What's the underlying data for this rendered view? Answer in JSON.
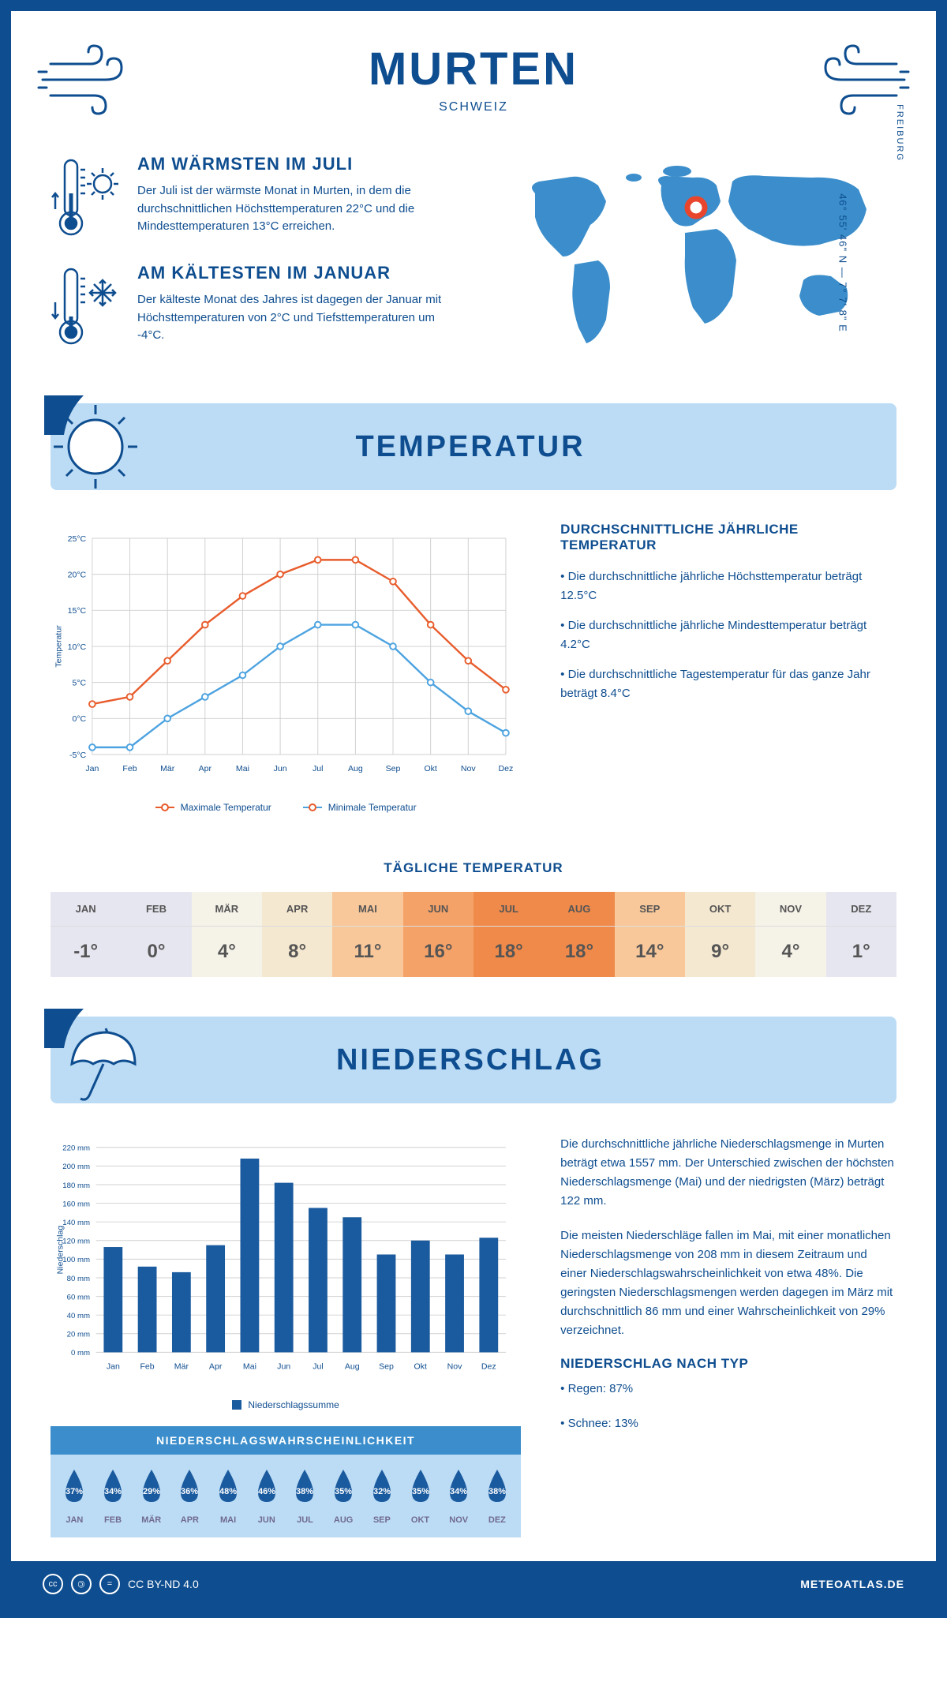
{
  "header": {
    "city": "MURTEN",
    "country": "SCHWEIZ"
  },
  "coords": "46° 55' 46\" N — 7° 7' 8\" E",
  "region": "FREIBURG",
  "intro": {
    "warm_title": "AM WÄRMSTEN IM JULI",
    "warm_text": "Der Juli ist der wärmste Monat in Murten, in dem die durchschnittlichen Höchsttemperaturen 22°C und die Mindesttemperaturen 13°C erreichen.",
    "cold_title": "AM KÄLTESTEN IM JANUAR",
    "cold_text": "Der kälteste Monat des Jahres ist dagegen der Januar mit Höchsttemperaturen von 2°C und Tiefsttemperaturen um -4°C."
  },
  "colors": {
    "primary": "#0e4d8f",
    "light_blue": "#bcdcf5",
    "mid_blue": "#3b8ecb",
    "max_line": "#e85c2c",
    "min_line": "#4da3e0",
    "grid": "#d0d0d0",
    "bar": "#1a5a9e"
  },
  "temp_section": {
    "title": "TEMPERATUR",
    "info_title": "DURCHSCHNITTLICHE JÄHRLICHE TEMPERATUR",
    "bullets": [
      "• Die durchschnittliche jährliche Höchsttemperatur beträgt 12.5°C",
      "• Die durchschnittliche jährliche Mindesttemperatur beträgt 4.2°C",
      "• Die durchschnittliche Tagestemperatur für das ganze Jahr beträgt 8.4°C"
    ],
    "chart": {
      "ylabel": "Temperatur",
      "ymin": -5,
      "ymax": 25,
      "ytick_step": 5,
      "months": [
        "Jan",
        "Feb",
        "Mär",
        "Apr",
        "Mai",
        "Jun",
        "Jul",
        "Aug",
        "Sep",
        "Okt",
        "Nov",
        "Dez"
      ],
      "max_values": [
        2,
        3,
        8,
        13,
        17,
        20,
        22,
        22,
        19,
        13,
        8,
        4
      ],
      "min_values": [
        -4,
        -4,
        0,
        3,
        6,
        10,
        13,
        13,
        10,
        5,
        1,
        -2
      ],
      "legend_max": "Maximale Temperatur",
      "legend_min": "Minimale Temperatur"
    }
  },
  "daily": {
    "title": "TÄGLICHE TEMPERATUR",
    "months": [
      "JAN",
      "FEB",
      "MÄR",
      "APR",
      "MAI",
      "JUN",
      "JUL",
      "AUG",
      "SEP",
      "OKT",
      "NOV",
      "DEZ"
    ],
    "values": [
      "-1°",
      "0°",
      "4°",
      "8°",
      "11°",
      "16°",
      "18°",
      "18°",
      "14°",
      "9°",
      "4°",
      "1°"
    ],
    "bg_colors": [
      "#e6e6f0",
      "#e6e6f0",
      "#f5f2e8",
      "#f5e8d0",
      "#f8c89a",
      "#f5a268",
      "#ef8a4a",
      "#ef8a4a",
      "#f8c89a",
      "#f5e8d0",
      "#f5f2e8",
      "#e6e6f0"
    ]
  },
  "precip_section": {
    "title": "NIEDERSCHLAG",
    "text1": "Die durchschnittliche jährliche Niederschlagsmenge in Murten beträgt etwa 1557 mm. Der Unterschied zwischen der höchsten Niederschlagsmenge (Mai) und der niedrigsten (März) beträgt 122 mm.",
    "text2": "Die meisten Niederschläge fallen im Mai, mit einer monatlichen Niederschlagsmenge von 208 mm in diesem Zeitraum und einer Niederschlagswahrscheinlichkeit von etwa 48%. Die geringsten Niederschlagsmengen werden dagegen im März mit durchschnittlich 86 mm und einer Wahrscheinlichkeit von 29% verzeichnet.",
    "type_title": "NIEDERSCHLAG NACH TYP",
    "type_bullets": [
      "• Regen: 87%",
      "• Schnee: 13%"
    ],
    "chart": {
      "ylabel": "Niederschlag",
      "ymin": 0,
      "ymax": 220,
      "ytick_step": 20,
      "months": [
        "Jan",
        "Feb",
        "Mär",
        "Apr",
        "Mai",
        "Jun",
        "Jul",
        "Aug",
        "Sep",
        "Okt",
        "Nov",
        "Dez"
      ],
      "values": [
        113,
        92,
        86,
        115,
        208,
        182,
        155,
        145,
        105,
        120,
        105,
        123
      ],
      "legend": "Niederschlagssumme"
    },
    "prob": {
      "title": "NIEDERSCHLAGSWAHRSCHEINLICHKEIT",
      "months": [
        "JAN",
        "FEB",
        "MÄR",
        "APR",
        "MAI",
        "JUN",
        "JUL",
        "AUG",
        "SEP",
        "OKT",
        "NOV",
        "DEZ"
      ],
      "values": [
        "37%",
        "34%",
        "29%",
        "36%",
        "48%",
        "46%",
        "38%",
        "35%",
        "32%",
        "35%",
        "34%",
        "38%"
      ]
    }
  },
  "footer": {
    "license": "CC BY-ND 4.0",
    "site": "METEOATLAS.DE"
  }
}
